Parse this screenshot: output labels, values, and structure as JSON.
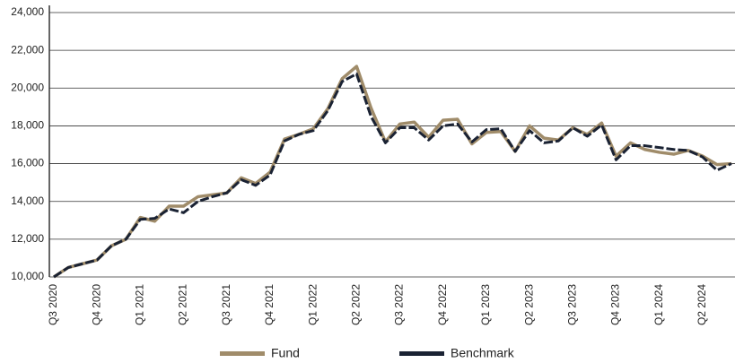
{
  "chart_data": {
    "type": "line",
    "categories": [
      "Q3 2020",
      null,
      null,
      "Q4 2020",
      null,
      null,
      "Q1 2021",
      null,
      null,
      "Q2 2021",
      null,
      null,
      "Q3 2021",
      null,
      null,
      "Q4 2021",
      null,
      null,
      "Q1 2022",
      null,
      null,
      "Q2 2022",
      null,
      null,
      "Q3 2022",
      null,
      null,
      "Q4 2022",
      null,
      null,
      "Q1 2023",
      null,
      null,
      "Q2 2023",
      null,
      null,
      "Q3 2023",
      null,
      null,
      "Q4 2023",
      null,
      null,
      "Q1 2024",
      null,
      null,
      "Q2 2024",
      null,
      null
    ],
    "series": [
      {
        "name": "Fund",
        "color": "#a08c6a",
        "values": [
          10000,
          10500,
          10700,
          10900,
          11650,
          12000,
          13150,
          12950,
          13750,
          13750,
          14250,
          14350,
          14450,
          15250,
          14950,
          15550,
          17300,
          17550,
          17850,
          18900,
          20500,
          21150,
          18950,
          17150,
          18100,
          18200,
          17400,
          18300,
          18350,
          17050,
          17650,
          17700,
          16650,
          18000,
          17350,
          17250,
          17900,
          17550,
          18150,
          16400,
          17100,
          16750,
          16600,
          16500,
          16700,
          16400,
          15950,
          16000
        ]
      },
      {
        "name": "Benchmark",
        "color": "#1a2233",
        "values": [
          10000,
          10500,
          10700,
          10900,
          11650,
          12000,
          13050,
          13100,
          13600,
          13400,
          14000,
          14250,
          14450,
          15150,
          14850,
          15400,
          17200,
          17550,
          17750,
          18800,
          20350,
          20750,
          18500,
          17100,
          17900,
          17900,
          17250,
          18000,
          18100,
          17150,
          17800,
          17850,
          16650,
          17750,
          17100,
          17200,
          17900,
          17450,
          18050,
          16200,
          16950,
          16950,
          16850,
          16750,
          16700,
          16350,
          15650,
          16000
        ]
      }
    ],
    "ylim": [
      10000,
      24000
    ],
    "yticks": [
      {
        "value": 10000,
        "label": "10,000"
      },
      {
        "value": 12000,
        "label": "12,000"
      },
      {
        "value": 14000,
        "label": "14,000"
      },
      {
        "value": 16000,
        "label": "16,000"
      },
      {
        "value": 18000,
        "label": "18,000"
      },
      {
        "value": 20000,
        "label": "20,000"
      },
      {
        "value": 22000,
        "label": "22,000"
      },
      {
        "value": 24000,
        "label": "24,000"
      }
    ],
    "grid": true
  }
}
